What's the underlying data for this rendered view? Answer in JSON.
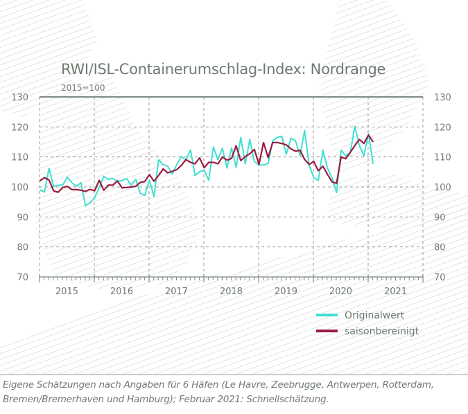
{
  "chart_data": {
    "type": "line",
    "title": "RWI/ISL-Containerumschlag-Index: Nordrange",
    "subtitle": "2015=100",
    "ylim": [
      70,
      130
    ],
    "yticks": [
      "130",
      "120",
      "110",
      "100",
      "90",
      "80",
      "70"
    ],
    "yticks_right": [
      "130",
      "120",
      "110",
      "100",
      "90",
      "80",
      "70"
    ],
    "x_tick_labels": [
      "2015",
      "2016",
      "2017",
      "2018",
      "2019",
      "2020",
      "2021"
    ],
    "x_frequency": "monthly",
    "x_start": "2015-01",
    "x_end": "2021-02",
    "grid": true,
    "legend_position": "bottom-right",
    "series": [
      {
        "name": "Originalwert",
        "color": "#3fe0d2",
        "values": [
          99.1,
          98.3,
          106.2,
          100.2,
          100.6,
          100.6,
          103.3,
          101.4,
          100.2,
          101.4,
          93.7,
          94.8,
          96.4,
          99.8,
          103.5,
          102.5,
          102.8,
          101.8,
          102.1,
          102.8,
          100.6,
          102.5,
          97.9,
          97.2,
          102.3,
          96.8,
          109.1,
          107.4,
          106.9,
          104.3,
          107.5,
          110.1,
          109.1,
          112.3,
          103.8,
          105.1,
          105.5,
          102.2,
          113.3,
          109.1,
          112.9,
          106.3,
          113.0,
          106.5,
          116.5,
          107.7,
          115.8,
          108.5,
          107.3,
          107.3,
          107.8,
          115.4,
          116.5,
          116.9,
          110.9,
          116.2,
          115.4,
          110.4,
          118.8,
          107.3,
          103.1,
          102.2,
          112.3,
          106.2,
          103.1,
          98.1,
          112.3,
          110.4,
          111.5,
          120.2,
          113.8,
          110.4,
          117.7,
          107.7
        ]
      },
      {
        "name": "saisonbereinigt",
        "color": "#9b1b40",
        "values": [
          102.0,
          103.1,
          102.3,
          98.7,
          98.2,
          99.8,
          100.2,
          99.1,
          99.1,
          98.9,
          98.5,
          99.2,
          98.7,
          102.2,
          98.9,
          100.6,
          100.6,
          102.0,
          99.7,
          99.8,
          100.0,
          100.2,
          101.5,
          101.8,
          104.1,
          101.9,
          103.8,
          106.0,
          104.7,
          105.2,
          105.8,
          107.2,
          109.1,
          108.2,
          107.7,
          109.7,
          106.4,
          108.2,
          108.2,
          107.7,
          110.0,
          108.9,
          109.5,
          113.7,
          108.8,
          110.1,
          111.1,
          112.5,
          107.5,
          114.8,
          109.8,
          114.8,
          114.8,
          114.5,
          114.0,
          112.7,
          111.9,
          112.2,
          109.2,
          107.5,
          108.5,
          105.4,
          106.9,
          104.2,
          101.7,
          101.2,
          110.0,
          109.4,
          111.5,
          113.8,
          115.8,
          114.5,
          117.3,
          115.0
        ]
      }
    ]
  },
  "caption": {
    "line1": "Eigene Schätzungen nach Angaben für 6 Häfen (Le Havre, Zeebrugge, Antwerpen, Rotterdam,",
    "line2": "Bremen/Bremerhaven und Hamburg); Februar 2021: Schnellschätzung."
  }
}
